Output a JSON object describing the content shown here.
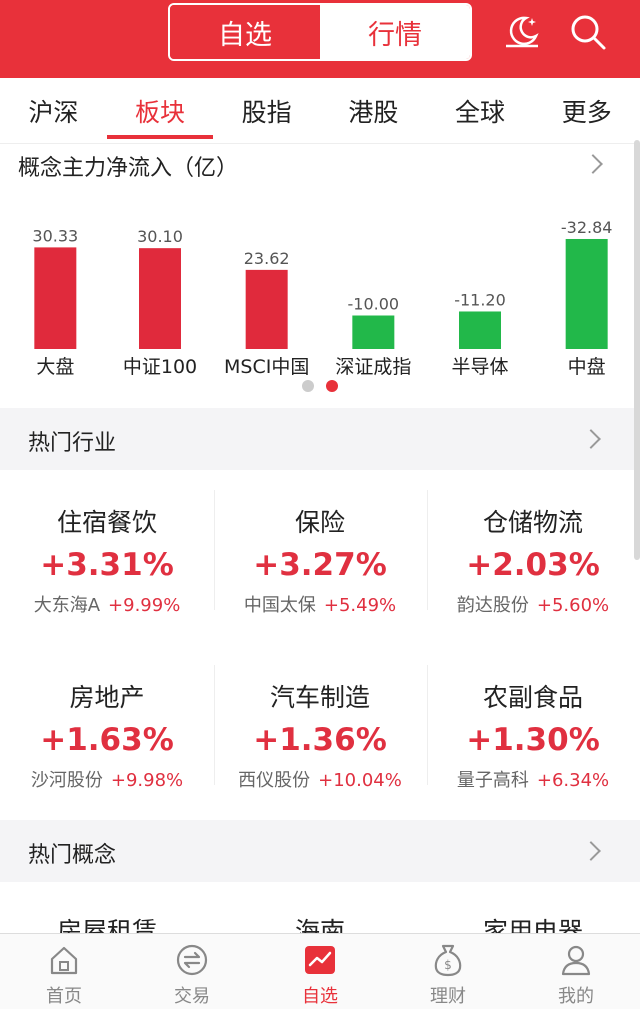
{
  "header": {
    "segments": [
      "自选",
      "行情"
    ],
    "active_segment": "行情",
    "icons": [
      "night-mode-icon",
      "search-icon"
    ],
    "accent_color": "#e8313a"
  },
  "tabs": [
    {
      "label": "沪深"
    },
    {
      "label": "板块"
    },
    {
      "label": "股指"
    },
    {
      "label": "港股"
    },
    {
      "label": "全球"
    },
    {
      "label": "更多"
    }
  ],
  "active_tab": "板块",
  "flow": {
    "title": "概念主力净流入（亿）",
    "page_dots": 2,
    "active_page": 2
  },
  "chart_data": {
    "type": "bar",
    "categories": [
      "大盘",
      "中证100",
      "MSCI中国",
      "深证成指",
      "半导体",
      "中盘"
    ],
    "values": [
      30.33,
      30.1,
      23.62,
      -10.0,
      -11.2,
      -32.84
    ],
    "value_labels": [
      "30.33",
      "30.10",
      "23.62",
      "-10.00",
      "-11.20",
      "-32.84"
    ],
    "colors": {
      "positive": "#e02a3c",
      "negative": "#22b84a"
    },
    "title": "概念主力净流入（亿）"
  },
  "hot_industry": {
    "title": "热门行业",
    "items": [
      {
        "name": "住宿餐饮",
        "pct": "+3.31%",
        "stock": "大东海A",
        "stock_pct": "+9.99%"
      },
      {
        "name": "保险",
        "pct": "+3.27%",
        "stock": "中国太保",
        "stock_pct": "+5.49%"
      },
      {
        "name": "仓储物流",
        "pct": "+2.03%",
        "stock": "韵达股份",
        "stock_pct": "+5.60%"
      },
      {
        "name": "房地产",
        "pct": "+1.63%",
        "stock": "沙河股份",
        "stock_pct": "+9.98%"
      },
      {
        "name": "汽车制造",
        "pct": "+1.36%",
        "stock": "西仪股份",
        "stock_pct": "+10.04%"
      },
      {
        "name": "农副食品",
        "pct": "+1.30%",
        "stock": "量子高科",
        "stock_pct": "+6.34%"
      }
    ]
  },
  "hot_concept": {
    "title": "热门概念",
    "peek_items": [
      "房屋租赁",
      "海南",
      "家用电器"
    ]
  },
  "bottom_nav": [
    {
      "label": "首页",
      "icon": "home-icon"
    },
    {
      "label": "交易",
      "icon": "trade-icon"
    },
    {
      "label": "自选",
      "icon": "watchlist-icon"
    },
    {
      "label": "理财",
      "icon": "wealth-icon"
    },
    {
      "label": "我的",
      "icon": "profile-icon"
    }
  ],
  "active_nav": "自选"
}
